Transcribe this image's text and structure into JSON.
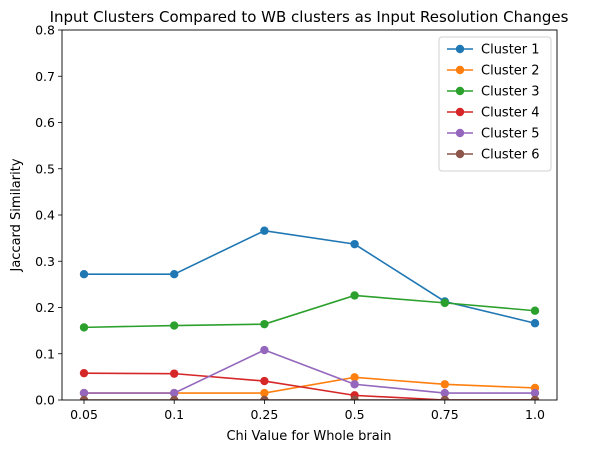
{
  "chart_data": {
    "type": "line",
    "title": "Input Clusters Compared to WB clusters as Input Resolution Changes",
    "xlabel": "Chi Value for Whole brain",
    "ylabel": "Jaccard Similarity",
    "categories": [
      "0.05",
      "0.1",
      "0.25",
      "0.5",
      "0.75",
      "1.0"
    ],
    "ylim": [
      0,
      0.8
    ],
    "yticks": [
      "0.0",
      "0.1",
      "0.2",
      "0.3",
      "0.4",
      "0.5",
      "0.6",
      "0.7",
      "0.8"
    ],
    "grid": false,
    "legend_position": "top-right",
    "series": [
      {
        "name": "Cluster 1",
        "color": "#1f77b4",
        "values": [
          0.272,
          0.272,
          0.366,
          0.337,
          0.213,
          0.166
        ]
      },
      {
        "name": "Cluster 2",
        "color": "#ff7f0e",
        "values": [
          0.015,
          0.015,
          0.015,
          0.049,
          0.034,
          0.026
        ]
      },
      {
        "name": "Cluster 3",
        "color": "#2ca02c",
        "values": [
          0.157,
          0.161,
          0.164,
          0.226,
          0.21,
          0.193
        ]
      },
      {
        "name": "Cluster 4",
        "color": "#d62728",
        "values": [
          0.058,
          0.057,
          0.041,
          0.01,
          0.0,
          0.0
        ]
      },
      {
        "name": "Cluster 5",
        "color": "#9467bd",
        "values": [
          0.015,
          0.015,
          0.108,
          0.034,
          0.015,
          0.015
        ]
      },
      {
        "name": "Cluster 6",
        "color": "#8c564b",
        "values": [
          0.0,
          0.0,
          0.0,
          0.0,
          0.0,
          0.0
        ]
      }
    ]
  }
}
